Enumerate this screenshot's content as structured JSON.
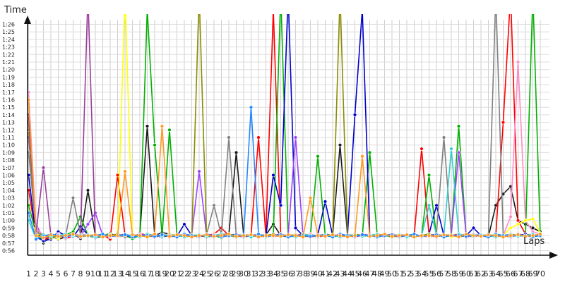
{
  "chart_data": {
    "type": "line",
    "title": "",
    "xlabel": "Laps",
    "ylabel": "Time",
    "x_categories": [
      "1",
      "2",
      "3",
      "4",
      "5",
      "6",
      "7",
      "8",
      "9",
      "10",
      "11",
      "12",
      "13",
      "14",
      "15",
      "16",
      "17",
      "18",
      "19",
      "20",
      "21",
      "22",
      "23",
      "24",
      "25",
      "26",
      "27",
      "28",
      "29",
      "30",
      "31",
      "32",
      "33",
      "34",
      "35",
      "36",
      "37",
      "38",
      "39",
      "40",
      "41",
      "42",
      "43",
      "44",
      "45",
      "46",
      "47",
      "48",
      "49",
      "50",
      "51",
      "52",
      "53",
      "54",
      "55",
      "56",
      "57",
      "58",
      "59",
      "60",
      "61",
      "62",
      "63",
      "64",
      "65",
      "66",
      "67",
      "68",
      "69",
      "70"
    ],
    "y_ticks": [
      "0:56",
      "0:57",
      "0:58",
      "0:59",
      "1:00",
      "1:01",
      "1:02",
      "1:03",
      "1:04",
      "1:05",
      "1:06",
      "1:07",
      "1:08",
      "1:09",
      "1:10",
      "1:11",
      "1:12",
      "1:13",
      "1:14",
      "1:15",
      "1:16",
      "1:17",
      "1:18",
      "1:19",
      "1:20",
      "1:21",
      "1:22",
      "1:23",
      "1:24",
      "1:25",
      "1:26"
    ],
    "ylim_seconds": [
      55.5,
      87.5
    ],
    "grid": true,
    "legend": "none",
    "series": [
      {
        "color": "#1a1a1a",
        "values": [
          73,
          59,
          57,
          58,
          57.5,
          57.8,
          58.2,
          57.6,
          64,
          58,
          57.9,
          58.3,
          57.8,
          58,
          57.7,
          58.1,
          72.5,
          58,
          58.4,
          58.2,
          58,
          57.9,
          58.1,
          58,
          57.8,
          58,
          58.2,
          58.1,
          69,
          58,
          57.9,
          58,
          58.1,
          59.5,
          58,
          57.8,
          58,
          58.1,
          58,
          57.9,
          58.2,
          58,
          70,
          58.1,
          58,
          57.9,
          58,
          58.1,
          58,
          58,
          57.9,
          58.1,
          58,
          58,
          57.8,
          58,
          58.1,
          58,
          57.9,
          58,
          58.1,
          58,
          57.8,
          62,
          63.5,
          64.5,
          60,
          59.5,
          59,
          58.5
        ]
      },
      {
        "color": "#ff0000",
        "values": [
          64,
          58,
          57.4,
          57.8,
          58.1,
          57.6,
          57.9,
          58.2,
          58,
          57.8,
          58.1,
          57.5,
          66,
          58,
          57.7,
          58.3,
          58,
          57.9,
          58.1,
          57.8,
          58,
          58.1,
          58,
          57.9,
          58,
          58.2,
          59,
          58,
          57.8,
          58.1,
          58,
          71,
          58,
          88,
          58.1,
          57.9,
          58,
          58.2,
          58,
          57.8,
          58,
          58.1,
          57.9,
          58,
          58.1,
          58,
          57.9,
          58.2,
          58,
          58,
          57.9,
          58.1,
          58,
          69.5,
          58,
          57.8,
          58.1,
          58,
          58.2,
          57.9,
          58,
          58.1,
          58,
          58,
          73,
          90,
          60,
          58.2,
          58,
          57.9
        ]
      },
      {
        "color": "#00b000",
        "values": [
          62,
          58.3,
          57.2,
          57.6,
          57.9,
          58.1,
          58.5,
          60.5,
          58,
          57.7,
          57.9,
          58.2,
          57.8,
          58,
          57.6,
          58,
          88,
          70,
          58,
          72,
          58.1,
          57.8,
          58,
          57.9,
          58.1,
          58,
          57.7,
          58.2,
          58,
          57.9,
          58.1,
          58,
          57.8,
          58,
          90,
          58.1,
          58,
          57.9,
          58,
          68.5,
          58,
          57.8,
          58,
          57.9,
          58.1,
          58,
          69,
          58.2,
          57.9,
          58,
          58.1,
          57.8,
          58,
          58,
          66,
          57.9,
          58,
          58.1,
          72.5,
          58,
          57.9,
          58.1,
          58,
          57.8,
          58,
          58,
          58.1,
          57.9,
          90,
          58
        ]
      },
      {
        "color": "#0000cc",
        "values": [
          66,
          57.8,
          57.3,
          57.5,
          58.5,
          58,
          57.8,
          59.2,
          58.1,
          57.7,
          58,
          57.9,
          58.2,
          57.8,
          58,
          57.9,
          58.1,
          58,
          57.8,
          58,
          57.9,
          59.5,
          58,
          57.8,
          58.1,
          58,
          57.9,
          58,
          58.2,
          57.8,
          58,
          58.1,
          57.9,
          66,
          62,
          90,
          59,
          58,
          57.8,
          58.1,
          62.5,
          58,
          57.9,
          58,
          74,
          88,
          58.1,
          57.8,
          58,
          57.9,
          58.1,
          58,
          57.8,
          58,
          58.2,
          62,
          58,
          57.9,
          58.1,
          58,
          59,
          58,
          57.8,
          58.1,
          58,
          57.9,
          58,
          58.2,
          57.9,
          58
        ]
      },
      {
        "color": "#a040ff",
        "values": [
          71,
          59.5,
          57.6,
          57.9,
          58.2,
          57.7,
          58.1,
          57.9,
          59.5,
          61,
          58,
          57.8,
          58.1,
          58,
          57.9,
          58.2,
          58,
          57.8,
          58.1,
          58,
          57.9,
          58,
          58.1,
          66.5,
          58,
          57.8,
          58.2,
          58,
          57.9,
          58.1,
          58,
          57.8,
          58,
          58.1,
          57.9,
          58,
          71,
          58,
          57.8,
          58.1,
          58,
          57.9,
          58.2,
          58,
          57.8,
          58,
          58.1,
          57.9,
          58,
          58.2,
          57.9,
          58,
          58.1,
          57.8,
          58,
          58,
          57.9,
          58.1,
          69,
          58,
          57.8,
          58.1,
          58,
          57.9,
          58,
          58.2,
          57.9,
          58,
          58.1,
          58
        ]
      },
      {
        "color": "#ff8cc6",
        "values": [
          77,
          59,
          58,
          57.9,
          58.1,
          58,
          57.8,
          58.2,
          58,
          57.9,
          58.1,
          58,
          57.8,
          58,
          58.1,
          57.9,
          58,
          58.2,
          57.9,
          58,
          58.1,
          57.8,
          58,
          58,
          57.9,
          58.1,
          58,
          57.8,
          58.2,
          58,
          57.9,
          58.1,
          58,
          57.8,
          58,
          58.1,
          57.9,
          58,
          58.2,
          57.9,
          58,
          58.1,
          57.8,
          58,
          58,
          57.9,
          58.1,
          58,
          57.8,
          58.2,
          58,
          57.9,
          58.1,
          58,
          57.8,
          58,
          58.1,
          57.9,
          58,
          58.2,
          57.9,
          58,
          58.1,
          57.8,
          58,
          60.5,
          81,
          60,
          58.5,
          58.2
        ]
      },
      {
        "color": "#ffff00",
        "values": [
          73.5,
          58.5,
          57.8,
          58,
          57.6,
          58.2,
          57.9,
          58.1,
          58,
          57.8,
          58,
          58.1,
          57.9,
          90,
          58,
          57.8,
          58.1,
          58,
          57.9,
          58.2,
          58,
          57.8,
          58.1,
          58,
          57.9,
          58,
          58.2,
          57.9,
          58,
          58.1,
          57.8,
          58,
          58,
          57.9,
          58.1,
          58,
          57.8,
          58.2,
          58,
          57.9,
          58.1,
          58,
          57.8,
          58,
          58.1,
          57.9,
          58,
          58.2,
          57.9,
          58,
          58.1,
          57.8,
          58,
          58,
          57.9,
          58.1,
          58,
          57.8,
          58.2,
          58,
          57.9,
          58.1,
          58,
          57.8,
          58,
          59,
          59.5,
          60,
          60.2,
          58.3
        ]
      },
      {
        "color": "#8b8b00",
        "values": [
          72,
          58.4,
          58.1,
          57.7,
          58,
          57.9,
          58.2,
          57.8,
          58,
          58.1,
          57.9,
          58,
          58.2,
          57.9,
          58,
          58.1,
          57.8,
          58,
          58,
          57.9,
          58.1,
          58,
          57.8,
          90,
          58,
          57.9,
          58.1,
          58,
          57.8,
          58,
          58.1,
          57.9,
          58,
          58.2,
          57.9,
          58,
          58.1,
          57.8,
          58,
          58,
          57.9,
          58.1,
          90,
          57.8,
          58.2,
          58,
          57.9,
          58.1,
          58,
          57.8,
          58,
          58.1,
          57.9,
          58,
          58.2,
          57.9,
          58,
          58.1,
          57.8,
          58,
          58,
          57.9,
          58.1,
          58,
          57.8,
          58.2,
          58,
          57.9,
          58.1,
          58
        ]
      },
      {
        "color": "#808080",
        "values": [
          69,
          58.6,
          57.9,
          58.2,
          57.8,
          58,
          63,
          58.1,
          57.9,
          58,
          58.2,
          57.9,
          58,
          58.1,
          57.8,
          58,
          58,
          57.9,
          58.1,
          58,
          57.8,
          58.2,
          58,
          57.9,
          58.1,
          62,
          58,
          71,
          58,
          57.8,
          58.1,
          58,
          57.9,
          58,
          58.2,
          57.9,
          58,
          58.1,
          57.8,
          58,
          58,
          57.9,
          58.1,
          58,
          57.8,
          58.2,
          58,
          57.9,
          58.1,
          58,
          57.8,
          58,
          58.1,
          57.9,
          58,
          58.2,
          71,
          58,
          58.1,
          57.8,
          58,
          58,
          57.9,
          90,
          58,
          57.8,
          58.2,
          58,
          57.9,
          58.1
        ]
      },
      {
        "color": "#9a3d9a",
        "values": [
          74,
          58.2,
          67,
          58,
          57.9,
          58.1,
          58,
          57.8,
          90,
          58,
          58.1,
          57.9,
          58,
          58.2,
          57.9,
          58,
          58.1,
          57.8,
          58,
          58,
          57.9,
          58.1,
          58,
          57.8,
          58.2,
          58,
          57.9,
          58.1,
          58,
          57.8,
          58,
          58.1,
          57.9,
          58,
          58.2,
          57.9,
          58,
          58.1,
          57.8,
          58,
          58,
          57.9,
          58.1,
          58,
          57.8,
          58.2,
          58,
          57.9,
          58.1,
          58,
          57.8,
          58,
          58.1,
          57.9,
          58,
          58.2,
          57.9,
          58,
          58.1,
          57.8,
          58,
          58,
          57.9,
          58.1,
          58,
          57.8,
          58.2,
          58,
          57.9,
          58.1
        ]
      },
      {
        "color": "#33cccc",
        "values": [
          60,
          57.6,
          58.1,
          57.9,
          58,
          58.2,
          57.9,
          58,
          58.1,
          57.8,
          58,
          58,
          57.9,
          58.1,
          58,
          57.8,
          58.2,
          58,
          57.9,
          58.1,
          58,
          57.8,
          58,
          58.1,
          57.9,
          58,
          58.2,
          57.9,
          58,
          58.1,
          57.8,
          58,
          58,
          57.9,
          58.1,
          58,
          57.8,
          58.2,
          58,
          57.9,
          58.1,
          58,
          57.8,
          58,
          58.1,
          57.9,
          58,
          58.2,
          57.9,
          58,
          58.1,
          57.8,
          58,
          58,
          62,
          58.1,
          58,
          69.5,
          58.2,
          58,
          57.9,
          58.1,
          58,
          57.8,
          58,
          58.1,
          57.9,
          58,
          58.2,
          57.9
        ]
      },
      {
        "color": "#2288ff",
        "values": [
          61,
          57.5,
          57.9,
          58.2,
          58,
          57.8,
          58.1,
          58,
          57.9,
          58,
          58.2,
          57.9,
          58,
          58.1,
          57.8,
          58,
          58,
          57.9,
          58.1,
          58,
          57.8,
          58.2,
          58,
          57.9,
          58.1,
          58,
          57.8,
          58,
          58.1,
          57.9,
          75,
          58.2,
          57.9,
          58,
          58.1,
          57.8,
          58,
          58,
          57.9,
          58.1,
          58,
          57.8,
          58.2,
          58,
          57.9,
          58.1,
          58,
          57.8,
          58,
          58.1,
          57.9,
          58,
          58.2,
          57.9,
          58,
          58.1,
          57.8,
          58,
          58,
          57.9,
          58.1,
          58,
          57.8,
          58.2,
          58,
          57.9,
          58.1,
          58,
          57.8,
          58
        ]
      },
      {
        "color": "#ff9922",
        "values": [
          76,
          58,
          57.7,
          58.1,
          57.9,
          58,
          58.2,
          57.9,
          58,
          58.1,
          57.8,
          58,
          58,
          66.5,
          58.1,
          58,
          57.8,
          58.2,
          72.5,
          57.9,
          58.1,
          58,
          57.8,
          58,
          58.1,
          57.9,
          58,
          58.2,
          57.9,
          58,
          58.1,
          57.8,
          58,
          58,
          57.9,
          58.1,
          58,
          57.8,
          63,
          58,
          57.9,
          58.1,
          58,
          57.8,
          58,
          68.5,
          57.9,
          58,
          58.2,
          57.9,
          58,
          58.1,
          57.8,
          58,
          58,
          57.9,
          58.1,
          58,
          57.8,
          58.2,
          58,
          57.9,
          58.1,
          58,
          57.8,
          58,
          58.1,
          57.9,
          58,
          58.2
        ]
      }
    ]
  }
}
